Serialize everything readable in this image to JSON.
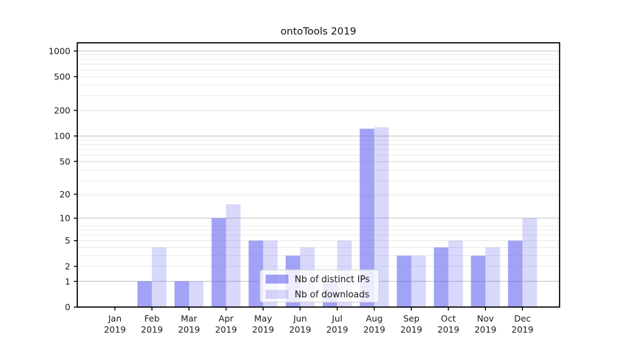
{
  "chart_data": {
    "type": "bar",
    "title": "ontoTools 2019",
    "categories": [
      "Jan",
      "Feb",
      "Mar",
      "Apr",
      "May",
      "Jun",
      "Jul",
      "Aug",
      "Sep",
      "Oct",
      "Nov",
      "Dec"
    ],
    "category_year": "2019",
    "series": [
      {
        "name": "Nb of distinct IPs",
        "color": "#6464f0",
        "fill_opacity": 0.6,
        "values": [
          0,
          1,
          1,
          10,
          5,
          3,
          1,
          122,
          3,
          4,
          3,
          5
        ]
      },
      {
        "name": "Nb of downloads",
        "color": "#6464f0",
        "fill_opacity": 0.25,
        "values": [
          0,
          4,
          1,
          15,
          5,
          4,
          5,
          127,
          3,
          5,
          4,
          10
        ]
      }
    ],
    "y_ticks": [
      0,
      1,
      2,
      5,
      10,
      20,
      50,
      100,
      200,
      500,
      1000
    ],
    "y_scale": "log1p",
    "ylim": [
      0,
      1250
    ],
    "xlabel": "",
    "ylabel": "",
    "grid": true,
    "legend_position": "lower-center",
    "colors": {
      "grid_major": "#c0c0c0",
      "grid_minor": "#eaeaea",
      "axis": "#000000",
      "legend_border": "#cccccc",
      "legend_background": "#ffffff",
      "text": "#1a1a1a"
    }
  }
}
